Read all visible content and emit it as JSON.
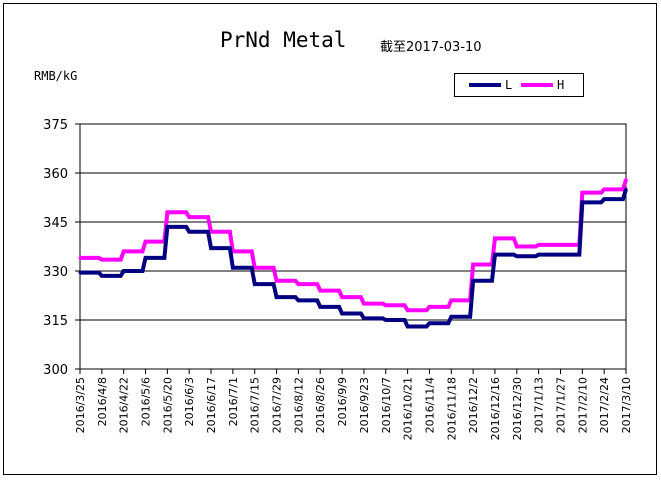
{
  "title": "PrNd Metal",
  "subtitle": "截至2017-03-10",
  "unit_label": "RMB/kG",
  "colors": {
    "L": "#000080",
    "H": "#ff00ff"
  },
  "chart_data": {
    "type": "line",
    "title": "PrNd Metal",
    "subtitle": "截至2017-03-10",
    "ylabel": "RMB/kG",
    "ylim": [
      300,
      375
    ],
    "yticks": [
      300,
      315,
      330,
      345,
      360,
      375
    ],
    "grid": "horizontal",
    "legend_position": "top-right",
    "categories": [
      "2016/3/25",
      "2016/4/8",
      "2016/4/22",
      "2016/5/6",
      "2016/5/20",
      "2016/6/3",
      "2016/6/17",
      "2016/7/1",
      "2016/7/15",
      "2016/7/29",
      "2016/8/12",
      "2016/8/26",
      "2016/9/9",
      "2016/9/23",
      "2016/10/7",
      "2016/10/21",
      "2016/11/4",
      "2016/11/18",
      "2016/12/2",
      "2016/12/16",
      "2016/12/30",
      "2017/1/13",
      "2017/1/27",
      "2017/2/10",
      "2017/2/24",
      "2017/3/10"
    ],
    "series": [
      {
        "name": "L",
        "color": "#000080",
        "values": [
          329.5,
          328.5,
          330,
          334,
          343.5,
          342,
          337,
          331,
          326,
          322,
          321,
          319,
          317,
          315.5,
          315,
          313,
          314,
          316,
          327,
          335,
          334.5,
          335,
          335,
          351,
          352,
          355
        ]
      },
      {
        "name": "H",
        "color": "#ff00ff",
        "values": [
          334,
          333.5,
          336,
          339,
          348,
          346.5,
          342,
          336,
          331,
          327,
          326,
          324,
          322,
          320,
          319.5,
          318,
          319,
          321,
          332,
          340,
          337.5,
          338,
          338,
          354,
          355,
          358
        ]
      }
    ]
  }
}
